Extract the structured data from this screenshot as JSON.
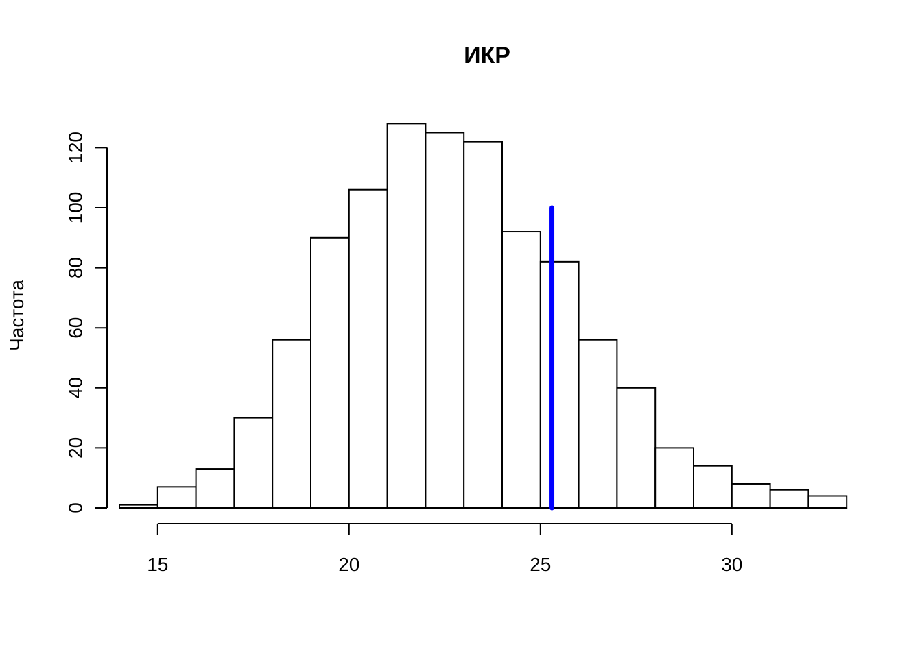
{
  "chart_data": {
    "type": "bar",
    "title": "ИКР",
    "xlabel": "",
    "ylabel": "Частота",
    "bin_edges": [
      14,
      15,
      16,
      17,
      18,
      19,
      20,
      21,
      22,
      23,
      24,
      25,
      26,
      27,
      28,
      29,
      30,
      31,
      32,
      33
    ],
    "values": [
      1,
      7,
      13,
      30,
      56,
      90,
      106,
      128,
      125,
      122,
      92,
      82,
      56,
      40,
      20,
      14,
      8,
      6,
      4
    ],
    "xlim": [
      14,
      33
    ],
    "ylim": [
      0,
      128
    ],
    "x_ticks": [
      15,
      20,
      25,
      30
    ],
    "x_tick_labels": [
      "15",
      "20",
      "25",
      "30"
    ],
    "y_ticks": [
      0,
      20,
      40,
      60,
      80,
      100,
      120
    ],
    "y_tick_labels": [
      "0",
      "20",
      "40",
      "60",
      "80",
      "100",
      "120"
    ],
    "reference_line": {
      "x": 25.3,
      "y_from": 0,
      "y_to": 100,
      "color": "#0000ff"
    },
    "bar_fill": "#ffffff",
    "bar_stroke": "#000000",
    "grid": false,
    "legend": "none"
  }
}
